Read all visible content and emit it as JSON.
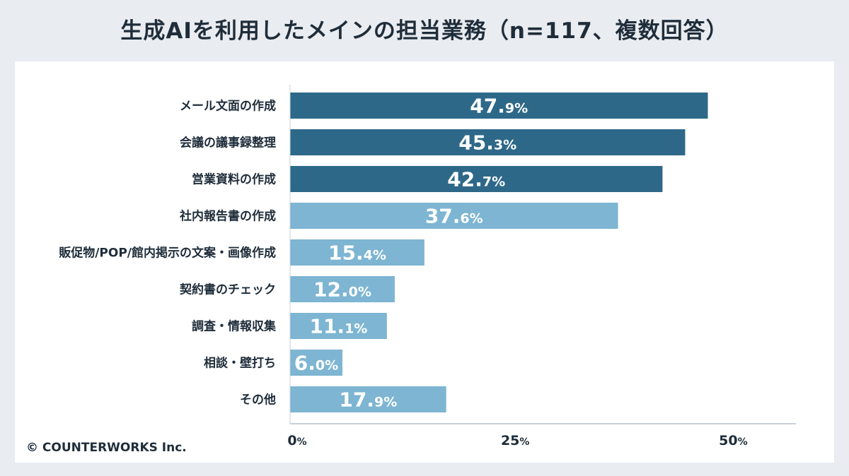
{
  "title": "生成AIを利用したメインの担当業務（n=117、複数回答）",
  "copyright": "© COUNTERWORKS Inc.",
  "colors": {
    "top": "#2e6889",
    "rest": "#7db5d2",
    "background": "#e9ecf0",
    "panel": "#ffffff",
    "axis": "#c8d0d8",
    "text": "#1f2d3a"
  },
  "chart_data": {
    "type": "bar",
    "orientation": "horizontal",
    "categories": [
      "メール文面の作成",
      "会議の議事録整理",
      "営業資料の作成",
      "社内報告書の作成",
      "販促物/POP/館内掲示の文案・画像作成",
      "契約書のチェック",
      "調査・情報収集",
      "相談・壁打ち",
      "その他"
    ],
    "values": [
      47.9,
      45.3,
      42.7,
      37.6,
      15.4,
      12.0,
      11.1,
      6.0,
      17.9
    ],
    "value_labels": [
      {
        "num": "47.",
        "dec": "9%"
      },
      {
        "num": "45.",
        "dec": "3%"
      },
      {
        "num": "42.",
        "dec": "7%"
      },
      {
        "num": "37.",
        "dec": "6%"
      },
      {
        "num": "15.",
        "dec": "4%"
      },
      {
        "num": "12.",
        "dec": "0%"
      },
      {
        "num": "11.",
        "dec": "1%"
      },
      {
        "num": "6.",
        "dec": "0%"
      },
      {
        "num": "17.",
        "dec": "9%"
      }
    ],
    "highlight_top": 3,
    "xticks": [
      {
        "value": 0,
        "num": "0",
        "unit": "%"
      },
      {
        "value": 25,
        "num": "25",
        "unit": "%"
      },
      {
        "value": 50,
        "num": "50",
        "unit": "%"
      }
    ],
    "xlim": [
      0,
      58
    ],
    "grid": false,
    "legend": "none"
  }
}
